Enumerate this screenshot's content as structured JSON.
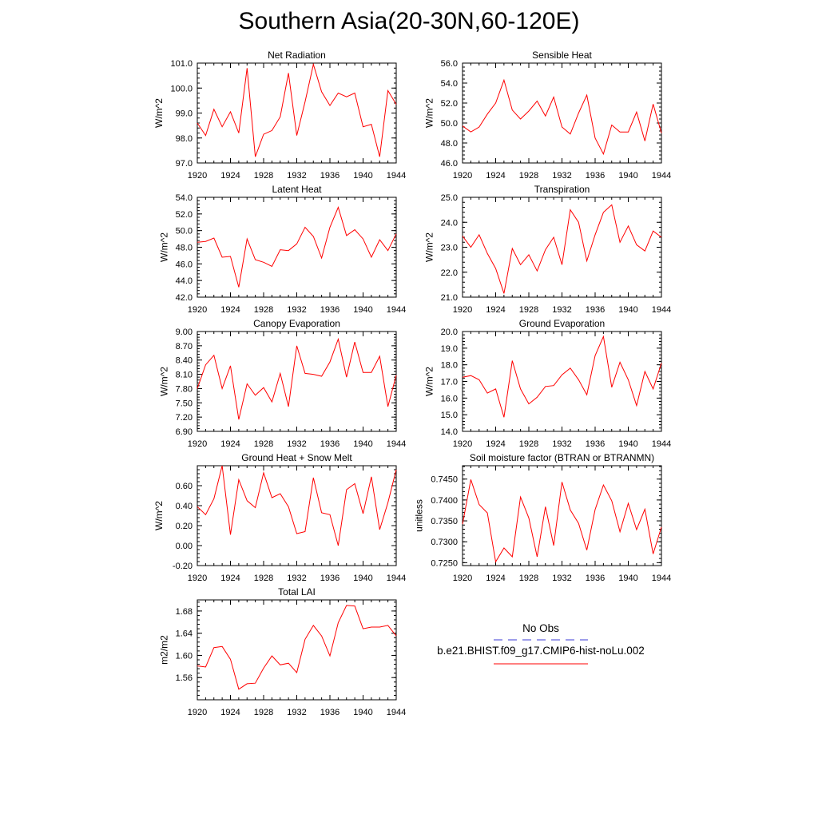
{
  "page": {
    "title": "Southern Asia(20-30N,60-120E)"
  },
  "legend": {
    "obs_label": "No Obs",
    "obs_color": "#3b3bd6",
    "model_label": "b.e21.BHIST.f09_g17.CMIP6-hist-noLu.002",
    "model_color": "#ff0000"
  },
  "chart_data": [
    {
      "type": "line",
      "title": "Net Radiation",
      "ylabel": "W/m^2",
      "xlim": [
        1920,
        1944
      ],
      "xticks": [
        "1920",
        "1924",
        "1928",
        "1932",
        "1936",
        "1940",
        "1944"
      ],
      "ylim": [
        97.0,
        101.0
      ],
      "yticks": [
        "97.0",
        "98.0",
        "99.0",
        "100.0",
        "101.0"
      ],
      "series": [
        {
          "color": "#ff0000",
          "x": [
            1920,
            1921,
            1922,
            1923,
            1924,
            1925,
            1926,
            1927,
            1928,
            1929,
            1930,
            1931,
            1932,
            1933,
            1934,
            1935,
            1936,
            1937,
            1938,
            1939,
            1940,
            1941,
            1942,
            1943,
            1944
          ],
          "values": [
            98.6,
            98.1,
            99.15,
            98.45,
            99.05,
            98.2,
            100.8,
            97.25,
            98.15,
            98.3,
            98.85,
            100.6,
            98.1,
            99.45,
            100.95,
            99.85,
            99.3,
            99.8,
            99.65,
            99.8,
            98.45,
            98.55,
            97.25,
            99.9,
            99.35
          ]
        }
      ]
    },
    {
      "type": "line",
      "title": "Sensible Heat",
      "ylabel": "W/m^2",
      "xlim": [
        1920,
        1944
      ],
      "xticks": [
        "1920",
        "1924",
        "1928",
        "1932",
        "1936",
        "1940",
        "1944"
      ],
      "ylim": [
        46.0,
        56.0
      ],
      "yticks": [
        "46.0",
        "48.0",
        "50.0",
        "52.0",
        "54.0",
        "56.0"
      ],
      "series": [
        {
          "color": "#ff0000",
          "x": [
            1920,
            1921,
            1922,
            1923,
            1924,
            1925,
            1926,
            1927,
            1928,
            1929,
            1930,
            1931,
            1932,
            1933,
            1934,
            1935,
            1936,
            1937,
            1938,
            1939,
            1940,
            1941,
            1942,
            1943,
            1944
          ],
          "values": [
            49.7,
            49.1,
            49.6,
            50.9,
            52.0,
            54.3,
            51.3,
            50.4,
            51.2,
            52.2,
            50.7,
            52.6,
            49.6,
            48.9,
            51.0,
            52.8,
            48.5,
            46.9,
            49.8,
            49.1,
            49.1,
            51.1,
            48.2,
            51.9,
            49.0
          ]
        }
      ]
    },
    {
      "type": "line",
      "title": "Latent Heat",
      "ylabel": "W/m^2",
      "xlim": [
        1920,
        1944
      ],
      "xticks": [
        "1920",
        "1924",
        "1928",
        "1932",
        "1936",
        "1940",
        "1944"
      ],
      "ylim": [
        42.0,
        54.0
      ],
      "yticks": [
        "42.0",
        "44.0",
        "46.0",
        "48.0",
        "50.0",
        "52.0",
        "54.0"
      ],
      "series": [
        {
          "color": "#ff0000",
          "x": [
            1920,
            1921,
            1922,
            1923,
            1924,
            1925,
            1926,
            1927,
            1928,
            1929,
            1930,
            1931,
            1932,
            1933,
            1934,
            1935,
            1936,
            1937,
            1938,
            1939,
            1940,
            1941,
            1942,
            1943,
            1944
          ],
          "values": [
            48.6,
            48.7,
            49.1,
            46.8,
            46.9,
            43.2,
            49.0,
            46.5,
            46.2,
            45.7,
            47.7,
            47.6,
            48.4,
            50.4,
            49.3,
            46.7,
            50.4,
            52.8,
            49.4,
            50.1,
            49.0,
            46.8,
            48.9,
            47.6,
            49.6
          ]
        }
      ]
    },
    {
      "type": "line",
      "title": "Transpiration",
      "ylabel": "W/m^2",
      "xlim": [
        1920,
        1944
      ],
      "xticks": [
        "1920",
        "1924",
        "1928",
        "1932",
        "1936",
        "1940",
        "1944"
      ],
      "ylim": [
        21.0,
        25.0
      ],
      "yticks": [
        "21.0",
        "22.0",
        "23.0",
        "24.0",
        "25.0"
      ],
      "series": [
        {
          "color": "#ff0000",
          "x": [
            1920,
            1921,
            1922,
            1923,
            1924,
            1925,
            1926,
            1927,
            1928,
            1929,
            1930,
            1931,
            1932,
            1933,
            1934,
            1935,
            1936,
            1937,
            1938,
            1939,
            1940,
            1941,
            1942,
            1943,
            1944
          ],
          "values": [
            23.45,
            23.0,
            23.5,
            22.75,
            22.15,
            21.15,
            22.95,
            22.3,
            22.7,
            22.05,
            22.9,
            23.4,
            22.3,
            24.5,
            24.0,
            22.45,
            23.5,
            24.4,
            24.7,
            23.2,
            23.85,
            23.1,
            22.85,
            23.65,
            23.4
          ]
        }
      ]
    },
    {
      "type": "line",
      "title": "Canopy Evaporation",
      "ylabel": "W/m^2",
      "xlim": [
        1920,
        1944
      ],
      "xticks": [
        "1920",
        "1924",
        "1928",
        "1932",
        "1936",
        "1940",
        "1944"
      ],
      "ylim": [
        6.9,
        9.0
      ],
      "yticks": [
        "6.90",
        "7.20",
        "7.50",
        "7.80",
        "8.10",
        "8.40",
        "8.70",
        "9.00"
      ],
      "series": [
        {
          "color": "#ff0000",
          "x": [
            1920,
            1921,
            1922,
            1923,
            1924,
            1925,
            1926,
            1927,
            1928,
            1929,
            1930,
            1931,
            1932,
            1933,
            1934,
            1935,
            1936,
            1937,
            1938,
            1939,
            1940,
            1941,
            1942,
            1943,
            1944
          ],
          "values": [
            7.8,
            8.3,
            8.5,
            7.8,
            8.28,
            7.15,
            7.9,
            7.66,
            7.82,
            7.52,
            8.12,
            7.42,
            8.7,
            8.12,
            8.1,
            8.06,
            8.36,
            8.84,
            8.04,
            8.78,
            8.14,
            8.14,
            8.48,
            7.42,
            8.08
          ]
        }
      ]
    },
    {
      "type": "line",
      "title": "Ground Evaporation",
      "ylabel": "W/m^2",
      "xlim": [
        1920,
        1944
      ],
      "xticks": [
        "1920",
        "1924",
        "1928",
        "1932",
        "1936",
        "1940",
        "1944"
      ],
      "ylim": [
        14.0,
        20.0
      ],
      "yticks": [
        "14.0",
        "15.0",
        "16.0",
        "17.0",
        "18.0",
        "19.0",
        "20.0"
      ],
      "series": [
        {
          "color": "#ff0000",
          "x": [
            1920,
            1921,
            1922,
            1923,
            1924,
            1925,
            1926,
            1927,
            1928,
            1929,
            1930,
            1931,
            1932,
            1933,
            1934,
            1935,
            1936,
            1937,
            1938,
            1939,
            1940,
            1941,
            1942,
            1943,
            1944
          ],
          "values": [
            17.25,
            17.35,
            17.1,
            16.3,
            16.55,
            14.85,
            18.25,
            16.55,
            15.65,
            16.05,
            16.7,
            16.75,
            17.4,
            17.8,
            17.1,
            16.2,
            18.55,
            19.7,
            16.65,
            18.15,
            17.1,
            15.55,
            17.6,
            16.55,
            18.1
          ]
        }
      ]
    },
    {
      "type": "line",
      "title": "Ground Heat + Snow Melt",
      "ylabel": "W/m^2",
      "xlim": [
        1920,
        1944
      ],
      "xticks": [
        "1920",
        "1924",
        "1928",
        "1932",
        "1936",
        "1940",
        "1944"
      ],
      "ylim": [
        -0.2,
        0.8
      ],
      "yticks": [
        "-0.20",
        "0.00",
        "0.20",
        "0.40",
        "0.60"
      ],
      "series": [
        {
          "color": "#ff0000",
          "x": [
            1920,
            1921,
            1922,
            1923,
            1924,
            1925,
            1926,
            1927,
            1928,
            1929,
            1930,
            1931,
            1932,
            1933,
            1934,
            1935,
            1936,
            1937,
            1938,
            1939,
            1940,
            1941,
            1942,
            1943,
            1944
          ],
          "values": [
            0.39,
            0.31,
            0.47,
            0.8,
            0.11,
            0.66,
            0.45,
            0.38,
            0.73,
            0.48,
            0.52,
            0.39,
            0.12,
            0.14,
            0.68,
            0.33,
            0.31,
            0.0,
            0.56,
            0.62,
            0.32,
            0.69,
            0.16,
            0.43,
            0.76
          ]
        }
      ]
    },
    {
      "type": "line",
      "title": "Soil moisture factor (BTRAN or BTRANMN)",
      "ylabel": "unitless",
      "xlim": [
        1920,
        1944
      ],
      "xticks": [
        "1920",
        "1924",
        "1928",
        "1932",
        "1936",
        "1940",
        "1944"
      ],
      "ylim": [
        0.7243,
        0.7482
      ],
      "yticks": [
        "0.7250",
        "0.7300",
        "0.7350",
        "0.7400",
        "0.7450"
      ],
      "series": [
        {
          "color": "#ff0000",
          "x": [
            1920,
            1921,
            1922,
            1923,
            1924,
            1925,
            1926,
            1927,
            1928,
            1929,
            1930,
            1931,
            1932,
            1933,
            1934,
            1935,
            1936,
            1937,
            1938,
            1939,
            1940,
            1941,
            1942,
            1943,
            1944
          ],
          "values": [
            0.7342,
            0.7449,
            0.7389,
            0.7369,
            0.7252,
            0.7285,
            0.7264,
            0.7407,
            0.7357,
            0.7264,
            0.7384,
            0.7291,
            0.7443,
            0.7376,
            0.7344,
            0.728,
            0.7377,
            0.7436,
            0.7398,
            0.7324,
            0.7392,
            0.7329,
            0.7378,
            0.7271,
            0.7335
          ]
        }
      ]
    },
    {
      "type": "line",
      "title": "Total LAI",
      "ylabel": "m2/m2",
      "xlim": [
        1920,
        1944
      ],
      "xticks": [
        "1920",
        "1924",
        "1928",
        "1932",
        "1936",
        "1940",
        "1944"
      ],
      "ylim": [
        1.52,
        1.7
      ],
      "yticks": [
        "1.56",
        "1.60",
        "1.64",
        "1.68"
      ],
      "series": [
        {
          "color": "#ff0000",
          "x": [
            1920,
            1921,
            1922,
            1923,
            1924,
            1925,
            1926,
            1927,
            1928,
            1929,
            1930,
            1931,
            1932,
            1933,
            1934,
            1935,
            1936,
            1937,
            1938,
            1939,
            1940,
            1941,
            1942,
            1943,
            1944
          ],
          "values": [
            1.581,
            1.579,
            1.614,
            1.616,
            1.593,
            1.539,
            1.549,
            1.55,
            1.577,
            1.599,
            1.583,
            1.586,
            1.569,
            1.629,
            1.654,
            1.635,
            1.599,
            1.659,
            1.69,
            1.689,
            1.648,
            1.651,
            1.651,
            1.654,
            1.635
          ]
        }
      ]
    }
  ]
}
